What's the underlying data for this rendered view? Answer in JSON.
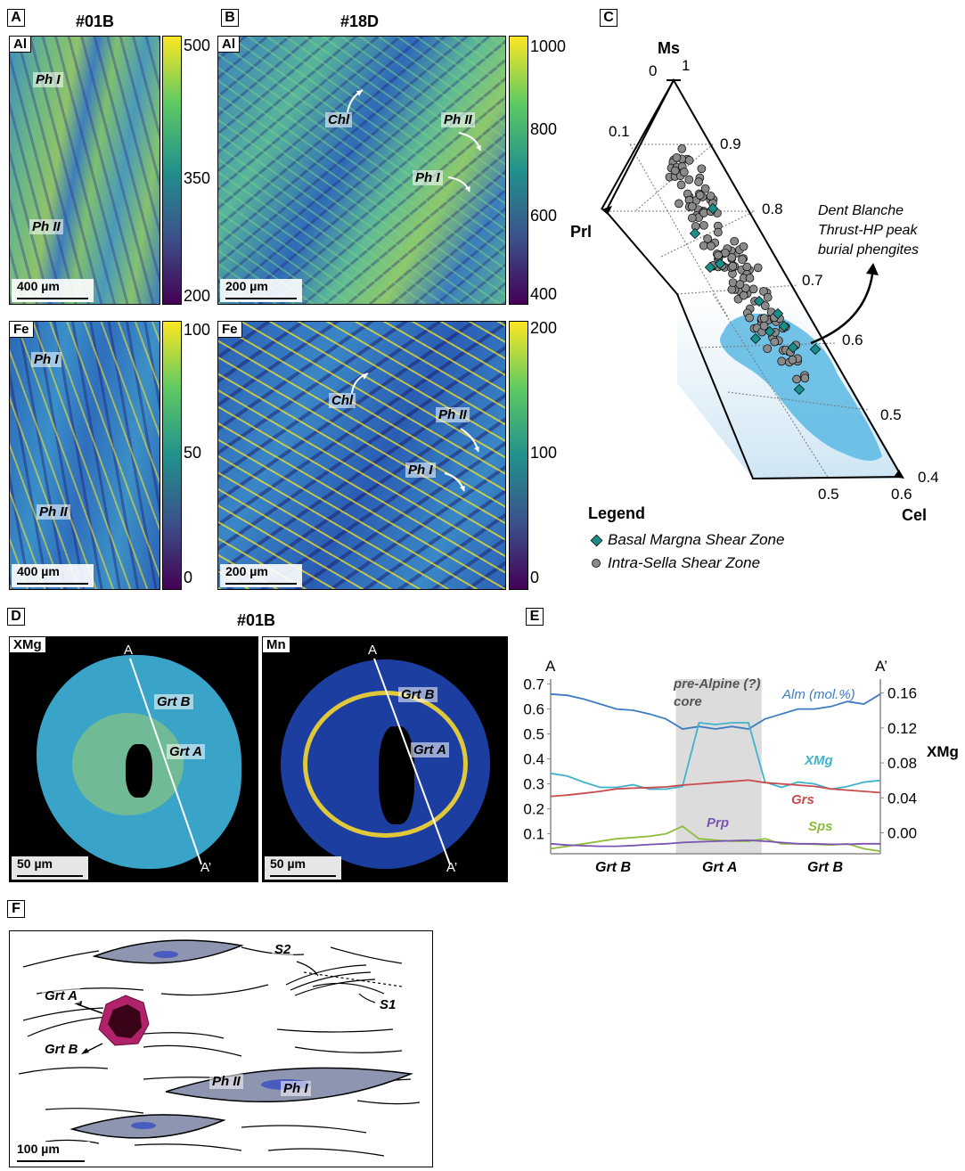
{
  "panels": {
    "a": {
      "label": "A",
      "title": "#01B",
      "maps": [
        {
          "element": "Al",
          "tags": [
            "Ph I",
            "Ph II"
          ],
          "scale": "400 µm",
          "ticks": [
            "500",
            "350",
            "200"
          ]
        },
        {
          "element": "Fe",
          "tags": [
            "Ph I",
            "Ph II"
          ],
          "scale": "400 µm",
          "ticks": [
            "100",
            "50",
            "0"
          ]
        }
      ]
    },
    "b": {
      "label": "B",
      "title": "#18D",
      "maps": [
        {
          "element": "Al",
          "tags": [
            "Chl",
            "Ph II",
            "Ph I"
          ],
          "scale": "200 µm",
          "ticks": [
            "1000",
            "800",
            "600",
            "400"
          ]
        },
        {
          "element": "Fe",
          "tags": [
            "Chl",
            "Ph II",
            "Ph I"
          ],
          "scale": "200 µm",
          "ticks": [
            "200",
            "100",
            "0"
          ]
        }
      ]
    },
    "c": {
      "label": "C",
      "apex_top": "Ms",
      "apex_left": "Prl",
      "apex_right": "Cel",
      "top_zero": "0",
      "top_one": "1",
      "left_ticks": [
        "0.1"
      ],
      "right_ticks": [
        "0.9",
        "0.8",
        "0.7",
        "0.6",
        "0.5",
        "0.4"
      ],
      "bottom_ticks": [
        "0.5",
        "0.6"
      ],
      "annotation": "Dent Blanche Thrust-HP peak burial phengites",
      "annotation_lines": [
        "Dent Blanche",
        "Thrust-HP peak",
        "burial phengites"
      ],
      "legend_title": "Legend",
      "legend": [
        {
          "name": "Basal Margna Shear Zone",
          "color": "#1a8f8a",
          "marker": "diamond"
        },
        {
          "name": "Intra-Sella Shear Zone",
          "color": "#8a8a8a",
          "marker": "circle"
        }
      ]
    },
    "d": {
      "label": "D",
      "title": "#01B",
      "maps": [
        {
          "element": "XMg",
          "tags": [
            "Grt B",
            "Grt A"
          ],
          "scale": "50 µm",
          "profile_start": "A",
          "profile_end": "A’"
        },
        {
          "element": "Mn",
          "tags": [
            "Grt B",
            "Grt A"
          ],
          "scale": "50 µm",
          "profile_start": "A",
          "profile_end": "A’"
        }
      ]
    },
    "e": {
      "label": "E",
      "start": "A",
      "end": "A’",
      "core_label": [
        "pre-Alpine (?)",
        "core"
      ],
      "right_axis_label": "XMg",
      "bottom_labels": [
        "Grt B",
        "Grt A",
        "Grt B"
      ]
    },
    "f": {
      "label": "F",
      "tags": {
        "grt_a": "Grt A",
        "grt_b": "Grt B",
        "s1": "S1",
        "s2": "S2",
        "ph2": "Ph II",
        "ph1": "Ph I"
      },
      "scale": "100 µm"
    }
  },
  "chart_data": {
    "type": "line",
    "x": [
      0,
      0.05,
      0.1,
      0.15,
      0.2,
      0.25,
      0.3,
      0.35,
      0.4,
      0.45,
      0.5,
      0.55,
      0.6,
      0.65,
      0.7,
      0.75,
      0.8,
      0.85,
      0.9,
      0.95,
      1.0
    ],
    "left_axis": {
      "ticks": [
        0.1,
        0.2,
        0.3,
        0.4,
        0.5,
        0.6,
        0.7
      ],
      "range": [
        0.02,
        0.72
      ]
    },
    "right_axis": {
      "ticks": [
        0.0,
        0.04,
        0.08,
        0.12,
        0.16
      ],
      "range": [
        -0.024,
        0.176
      ]
    },
    "core_range": [
      0.38,
      0.64
    ],
    "series": [
      {
        "name": "Alm (mol.%)",
        "axis": "left",
        "color": "#3e7cc0",
        "values": [
          0.66,
          0.655,
          0.64,
          0.62,
          0.6,
          0.595,
          0.58,
          0.56,
          0.52,
          0.53,
          0.52,
          0.53,
          0.52,
          0.56,
          0.58,
          0.6,
          0.6,
          0.61,
          0.63,
          0.62,
          0.66
        ]
      },
      {
        "name": "XMg",
        "axis": "right",
        "color": "#3fb3cc",
        "values": [
          0.068,
          0.065,
          0.058,
          0.052,
          0.052,
          0.055,
          0.05,
          0.05,
          0.053,
          0.126,
          0.124,
          0.126,
          0.126,
          0.058,
          0.052,
          0.058,
          0.056,
          0.05,
          0.053,
          0.058,
          0.06
        ]
      },
      {
        "name": "Grs",
        "axis": "left",
        "color": "#c94b4b",
        "values": [
          0.25,
          0.255,
          0.262,
          0.27,
          0.28,
          0.283,
          0.285,
          0.288,
          0.295,
          0.3,
          0.305,
          0.31,
          0.315,
          0.305,
          0.3,
          0.295,
          0.29,
          0.28,
          0.275,
          0.27,
          0.265
        ]
      },
      {
        "name": "Sps",
        "axis": "left",
        "color": "#8dbd3a",
        "values": [
          0.04,
          0.05,
          0.06,
          0.07,
          0.08,
          0.085,
          0.09,
          0.1,
          0.13,
          0.08,
          0.075,
          0.07,
          0.07,
          0.08,
          0.06,
          0.06,
          0.058,
          0.055,
          0.06,
          0.04,
          0.03
        ]
      },
      {
        "name": "Prp",
        "axis": "left",
        "color": "#7a54b0",
        "values": [
          0.06,
          0.055,
          0.052,
          0.05,
          0.05,
          0.053,
          0.057,
          0.06,
          0.065,
          0.068,
          0.07,
          0.072,
          0.074,
          0.07,
          0.065,
          0.06,
          0.06,
          0.058,
          0.058,
          0.06,
          0.06
        ]
      }
    ]
  }
}
